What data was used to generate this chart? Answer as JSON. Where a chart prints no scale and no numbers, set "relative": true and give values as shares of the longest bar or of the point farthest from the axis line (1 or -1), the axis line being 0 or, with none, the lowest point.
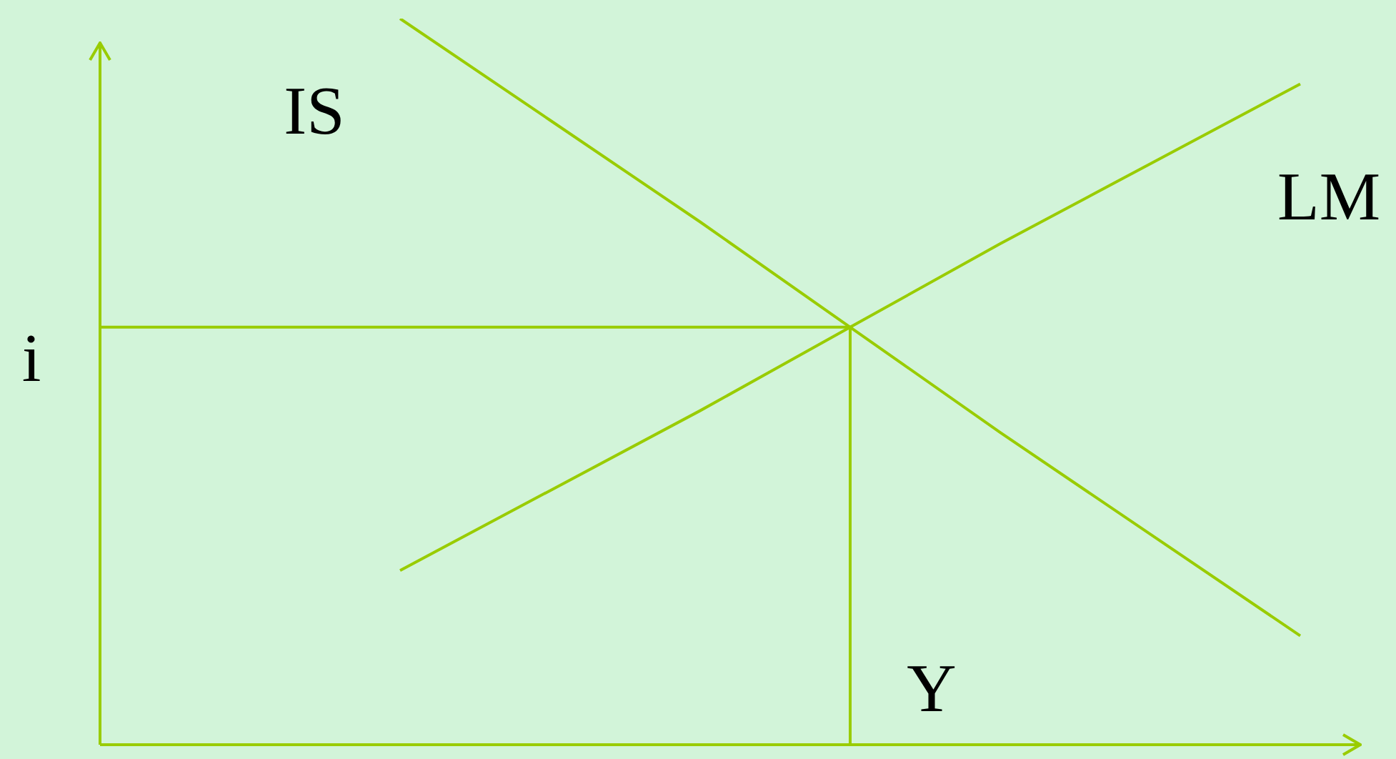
{
  "chart_data": {
    "type": "line",
    "relative": true,
    "marker": "none",
    "legend": false,
    "xlabel": "Y",
    "categories": [
      null,
      null,
      null,
      null,
      null,
      null,
      null,
      null,
      null
    ],
    "series": [
      {
        "name": "IS",
        "color": "#99cc00",
        "values": [
          null,
          null,
          1.0,
          0.86,
          0.72,
          0.575,
          0.43,
          0.29,
          0.15
        ]
      },
      {
        "name": "LM",
        "color": "#99cc00",
        "values": [
          null,
          null,
          0.24,
          0.35,
          0.46,
          0.575,
          0.69,
          0.8,
          0.91
        ]
      }
    ],
    "ref_lines": [
      {
        "axis": "y",
        "value": 0.575,
        "label": "i",
        "color": "#99cc00"
      }
    ]
  }
}
